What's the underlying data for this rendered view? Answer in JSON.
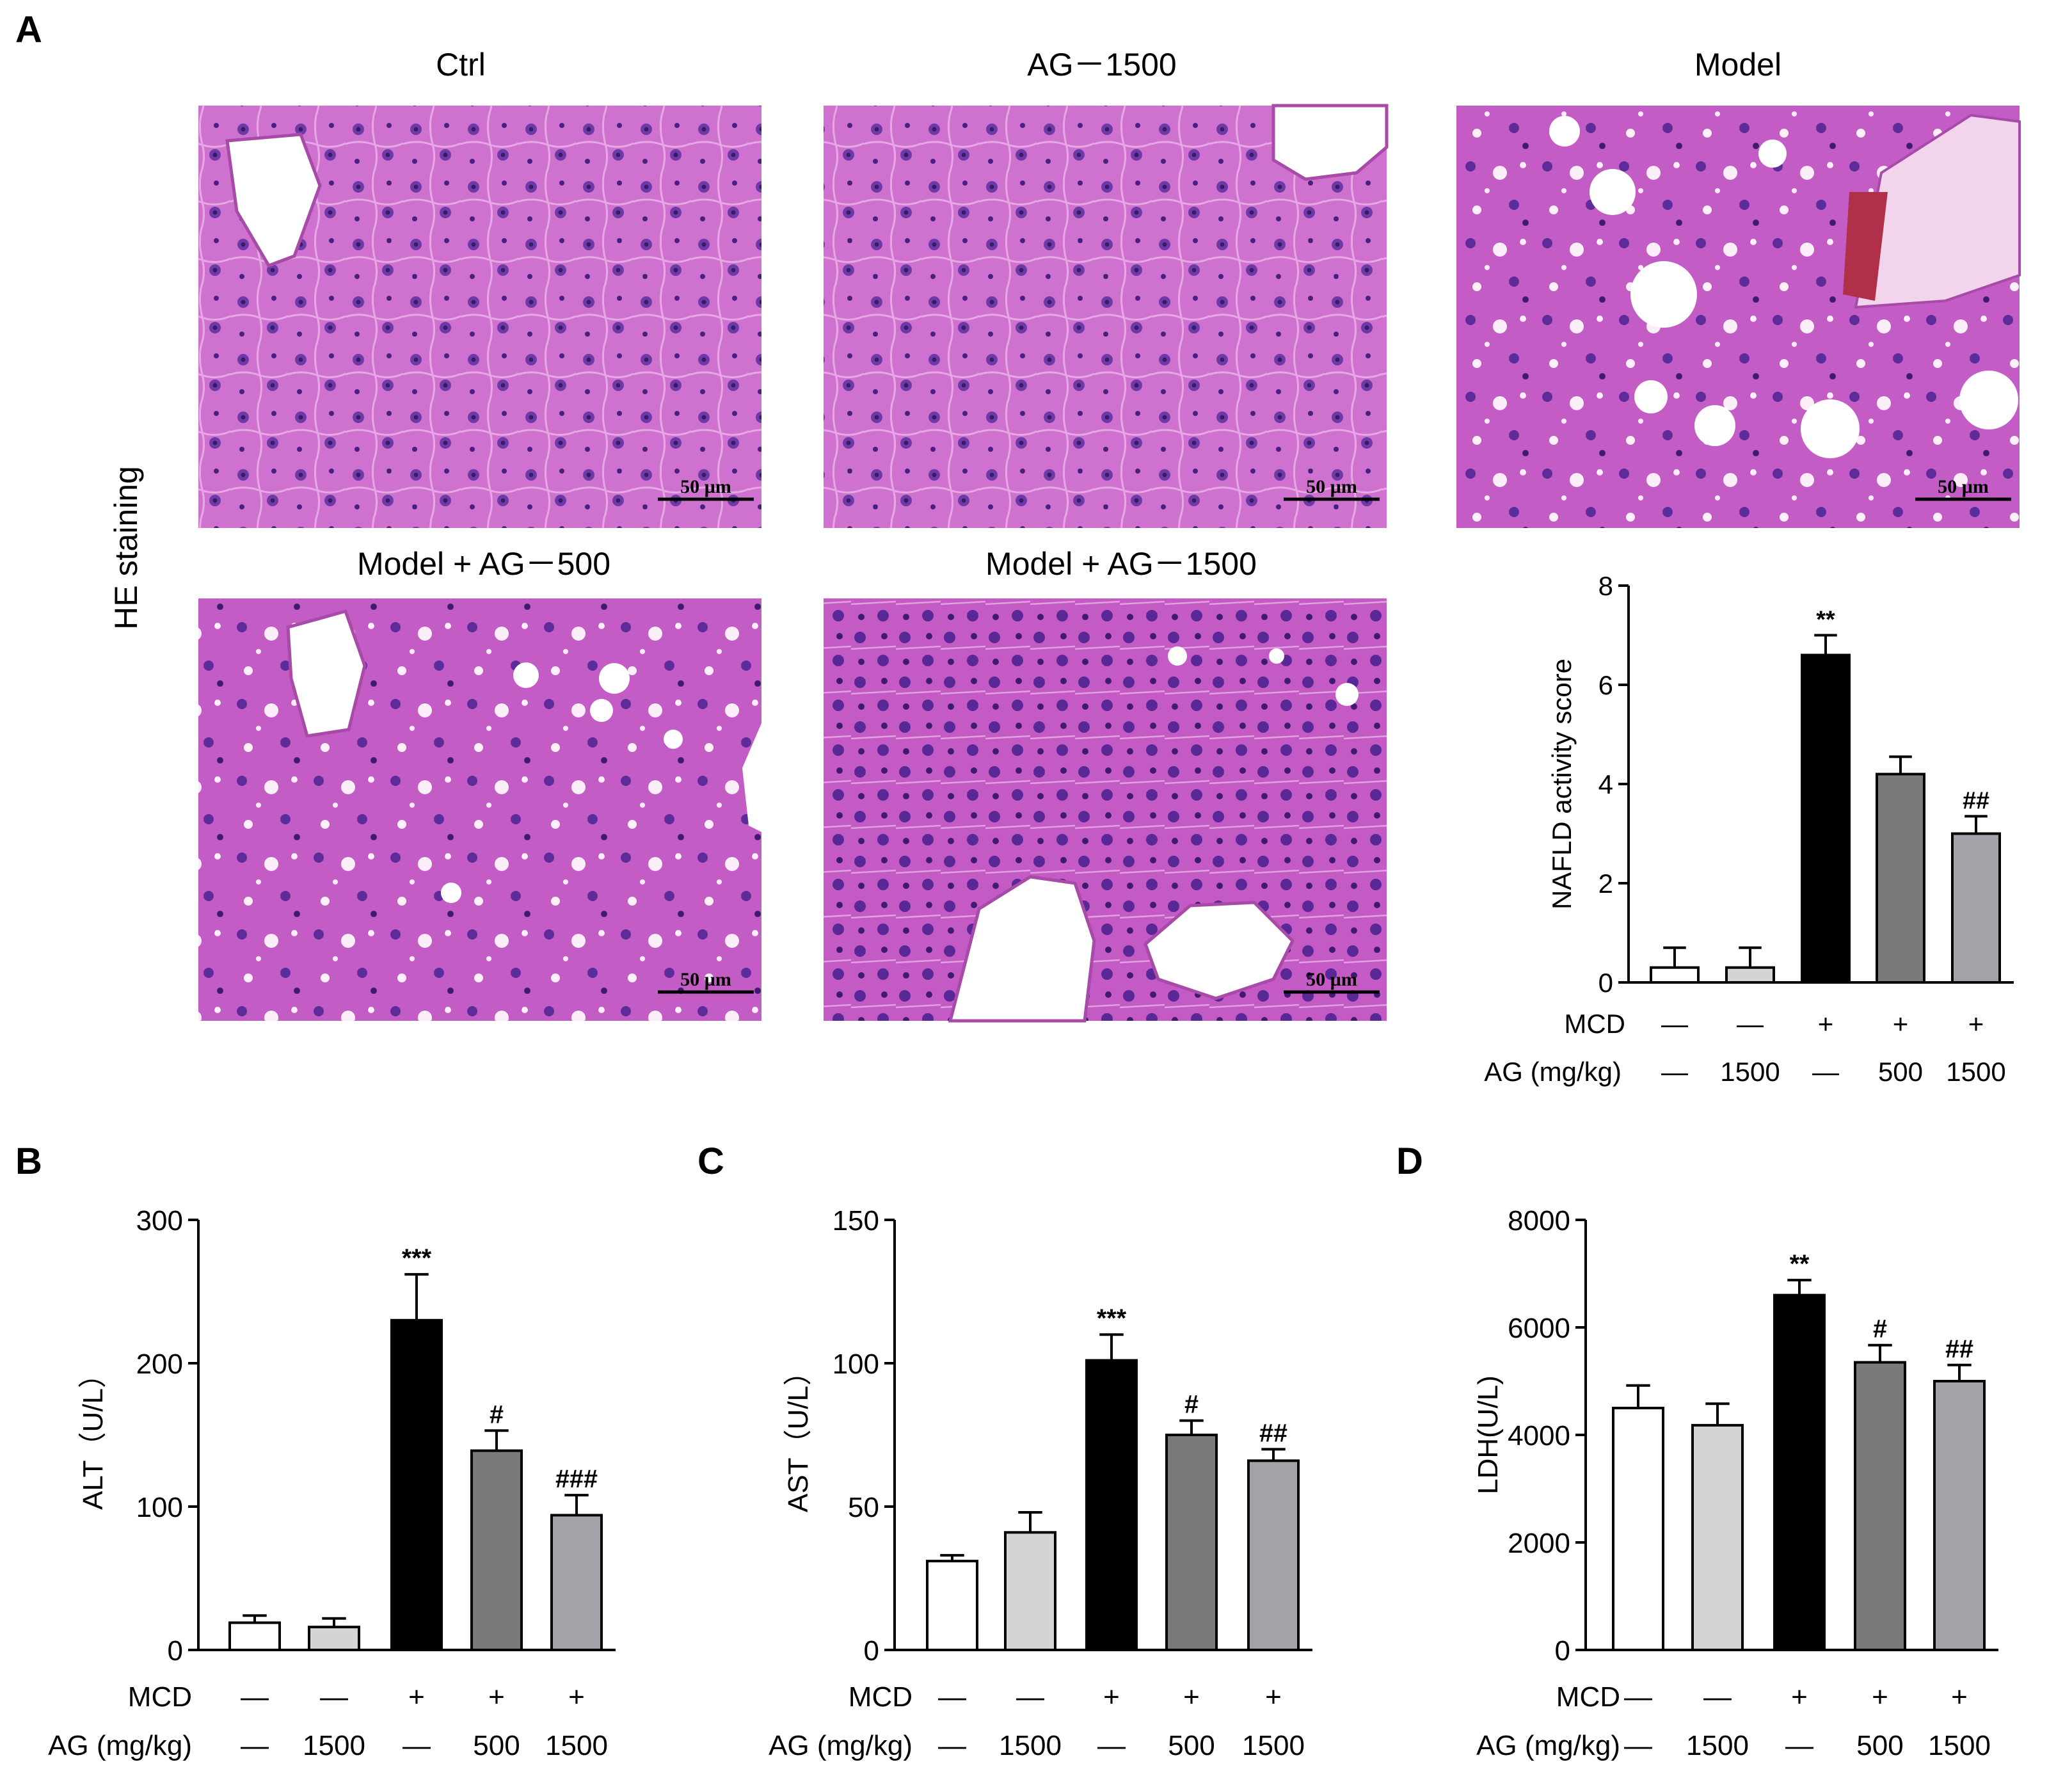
{
  "panels": {
    "A": {
      "letter": "A",
      "section_label": "HE staining",
      "micrographs": [
        {
          "title": "Ctrl",
          "scale_bar": "50 µm"
        },
        {
          "title": "AG－1500",
          "scale_bar": "50 µm"
        },
        {
          "title": "Model",
          "scale_bar": "50 µm"
        },
        {
          "title": "Model + AG－500",
          "scale_bar": "50 µm"
        },
        {
          "title": "Model + AG－1500",
          "scale_bar": "50 µm"
        }
      ]
    },
    "B": {
      "letter": "B"
    },
    "C": {
      "letter": "C"
    },
    "D": {
      "letter": "D"
    }
  },
  "group_rows": {
    "mcd_label": "MCD",
    "ag_label": "AG (mg/kg)",
    "mcd": [
      "—",
      "—",
      "+",
      "+",
      "+"
    ],
    "ag": [
      "—",
      "1500",
      "—",
      "500",
      "1500"
    ]
  },
  "colors": {
    "bars": [
      "#ffffff",
      "#d4d4d4",
      "#000000",
      "#7a7a7a",
      "#a2a2a8"
    ],
    "tissue": "#c765c6",
    "nuclei": "#5e2c9a"
  },
  "chart_data": [
    {
      "id": "A",
      "type": "bar",
      "title": "",
      "xlabel": "",
      "ylabel": "NAFLD activity score",
      "ylim": [
        0,
        8
      ],
      "yticks": [
        0,
        2,
        4,
        6,
        8
      ],
      "grid": false,
      "categories": [
        "Ctrl",
        "AG-1500",
        "Model",
        "Model+AG-500",
        "Model+AG-1500"
      ],
      "values": [
        0.3,
        0.3,
        6.6,
        4.2,
        3.0
      ],
      "errors": [
        0.4,
        0.4,
        0.4,
        0.35,
        0.35
      ],
      "annotations": [
        "",
        "",
        "**",
        "",
        "##"
      ]
    },
    {
      "id": "B",
      "type": "bar",
      "title": "",
      "xlabel": "",
      "ylabel": "ALT（U/L）",
      "ylim": [
        0,
        300
      ],
      "yticks": [
        0,
        100,
        200,
        300
      ],
      "grid": false,
      "categories": [
        "Ctrl",
        "AG-1500",
        "Model",
        "Model+AG-500",
        "Model+AG-1500"
      ],
      "values": [
        19,
        16,
        230,
        139,
        94
      ],
      "errors": [
        5,
        6,
        32,
        14,
        14
      ],
      "annotations": [
        "",
        "",
        "***",
        "#",
        "###"
      ]
    },
    {
      "id": "C",
      "type": "bar",
      "title": "",
      "xlabel": "",
      "ylabel": "AST（U/L）",
      "ylim": [
        0,
        150
      ],
      "yticks": [
        0,
        50,
        100,
        150
      ],
      "grid": false,
      "categories": [
        "Ctrl",
        "AG-1500",
        "Model",
        "Model+AG-500",
        "Model+AG-1500"
      ],
      "values": [
        31,
        41,
        101,
        75,
        66
      ],
      "errors": [
        2,
        7,
        9,
        5,
        4
      ],
      "annotations": [
        "",
        "",
        "***",
        "#",
        "##"
      ]
    },
    {
      "id": "D",
      "type": "bar",
      "title": "",
      "xlabel": "",
      "ylabel": "LDH(U/L)",
      "ylim": [
        0,
        8000
      ],
      "yticks": [
        0,
        2000,
        4000,
        6000,
        8000
      ],
      "grid": false,
      "categories": [
        "Ctrl",
        "AG-1500",
        "Model",
        "Model+AG-500",
        "Model+AG-1500"
      ],
      "values": [
        4500,
        4180,
        6600,
        5350,
        5000
      ],
      "errors": [
        420,
        400,
        280,
        320,
        300
      ],
      "annotations": [
        "",
        "",
        "**",
        "#",
        "##"
      ]
    }
  ]
}
